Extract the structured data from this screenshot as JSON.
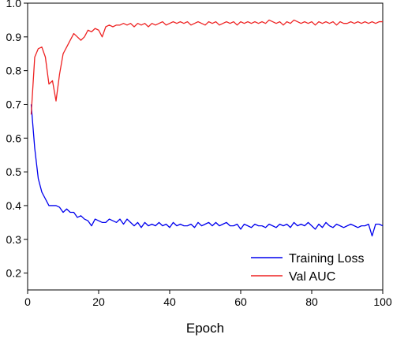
{
  "chart_data": {
    "type": "line",
    "title": "",
    "xlabel": "Epoch",
    "ylabel": "",
    "xlim": [
      0,
      100
    ],
    "ylim": [
      0.15,
      1.0
    ],
    "xticks": [
      0,
      20,
      40,
      60,
      80,
      100
    ],
    "xtick_labels": [
      "0",
      "20",
      "40",
      "60",
      "80",
      "100"
    ],
    "yticks": [
      0.2,
      0.3,
      0.4,
      0.5,
      0.6,
      0.7,
      0.8,
      0.9,
      1.0
    ],
    "ytick_labels": [
      "0.2",
      "0.3",
      "0.4",
      "0.5",
      "0.6",
      "0.7",
      "0.8",
      "0.9",
      "1.0"
    ],
    "grid": false,
    "legend_position": "bottom-right",
    "series": [
      {
        "name": "Training Loss",
        "color": "#0000ee",
        "x": [
          1,
          2,
          3,
          4,
          5,
          6,
          7,
          8,
          9,
          10,
          11,
          12,
          13,
          14,
          15,
          16,
          17,
          18,
          19,
          20,
          21,
          22,
          23,
          24,
          25,
          26,
          27,
          28,
          29,
          30,
          31,
          32,
          33,
          34,
          35,
          36,
          37,
          38,
          39,
          40,
          41,
          42,
          43,
          44,
          45,
          46,
          47,
          48,
          49,
          50,
          51,
          52,
          53,
          54,
          55,
          56,
          57,
          58,
          59,
          60,
          61,
          62,
          63,
          64,
          65,
          66,
          67,
          68,
          69,
          70,
          71,
          72,
          73,
          74,
          75,
          76,
          77,
          78,
          79,
          80,
          81,
          82,
          83,
          84,
          85,
          86,
          87,
          88,
          89,
          90,
          91,
          92,
          93,
          94,
          95,
          96,
          97,
          98,
          99,
          100
        ],
        "values": [
          0.7,
          0.57,
          0.48,
          0.44,
          0.42,
          0.4,
          0.4,
          0.4,
          0.395,
          0.38,
          0.39,
          0.38,
          0.38,
          0.365,
          0.37,
          0.36,
          0.355,
          0.34,
          0.36,
          0.355,
          0.35,
          0.35,
          0.36,
          0.355,
          0.35,
          0.36,
          0.345,
          0.36,
          0.35,
          0.34,
          0.35,
          0.335,
          0.35,
          0.34,
          0.345,
          0.34,
          0.35,
          0.34,
          0.345,
          0.335,
          0.35,
          0.34,
          0.345,
          0.34,
          0.34,
          0.345,
          0.335,
          0.35,
          0.34,
          0.345,
          0.35,
          0.34,
          0.35,
          0.34,
          0.345,
          0.35,
          0.34,
          0.34,
          0.345,
          0.33,
          0.345,
          0.34,
          0.335,
          0.345,
          0.34,
          0.34,
          0.335,
          0.345,
          0.34,
          0.335,
          0.345,
          0.34,
          0.345,
          0.335,
          0.35,
          0.34,
          0.345,
          0.34,
          0.35,
          0.34,
          0.33,
          0.345,
          0.335,
          0.35,
          0.34,
          0.335,
          0.345,
          0.34,
          0.335,
          0.34,
          0.345,
          0.34,
          0.335,
          0.34,
          0.34,
          0.345,
          0.31,
          0.345,
          0.345,
          0.34
        ]
      },
      {
        "name": "Val AUC",
        "color": "#ee2222",
        "x": [
          1,
          2,
          3,
          4,
          5,
          6,
          7,
          8,
          9,
          10,
          11,
          12,
          13,
          14,
          15,
          16,
          17,
          18,
          19,
          20,
          21,
          22,
          23,
          24,
          25,
          26,
          27,
          28,
          29,
          30,
          31,
          32,
          33,
          34,
          35,
          36,
          37,
          38,
          39,
          40,
          41,
          42,
          43,
          44,
          45,
          46,
          47,
          48,
          49,
          50,
          51,
          52,
          53,
          54,
          55,
          56,
          57,
          58,
          59,
          60,
          61,
          62,
          63,
          64,
          65,
          66,
          67,
          68,
          69,
          70,
          71,
          72,
          73,
          74,
          75,
          76,
          77,
          78,
          79,
          80,
          81,
          82,
          83,
          84,
          85,
          86,
          87,
          88,
          89,
          90,
          91,
          92,
          93,
          94,
          95,
          96,
          97,
          98,
          99,
          100
        ],
        "values": [
          0.67,
          0.84,
          0.865,
          0.87,
          0.84,
          0.76,
          0.77,
          0.71,
          0.79,
          0.85,
          0.87,
          0.89,
          0.91,
          0.9,
          0.89,
          0.9,
          0.92,
          0.915,
          0.925,
          0.92,
          0.9,
          0.93,
          0.935,
          0.93,
          0.935,
          0.935,
          0.94,
          0.935,
          0.94,
          0.93,
          0.94,
          0.935,
          0.94,
          0.93,
          0.94,
          0.935,
          0.94,
          0.945,
          0.935,
          0.94,
          0.945,
          0.94,
          0.945,
          0.94,
          0.945,
          0.935,
          0.94,
          0.945,
          0.94,
          0.935,
          0.945,
          0.94,
          0.945,
          0.935,
          0.94,
          0.945,
          0.94,
          0.945,
          0.935,
          0.945,
          0.94,
          0.945,
          0.94,
          0.945,
          0.94,
          0.945,
          0.94,
          0.95,
          0.945,
          0.94,
          0.945,
          0.935,
          0.945,
          0.94,
          0.95,
          0.945,
          0.94,
          0.945,
          0.94,
          0.945,
          0.935,
          0.945,
          0.94,
          0.945,
          0.94,
          0.945,
          0.935,
          0.945,
          0.94,
          0.94,
          0.945,
          0.94,
          0.945,
          0.94,
          0.945,
          0.94,
          0.945,
          0.94,
          0.945,
          0.945
        ]
      }
    ]
  }
}
